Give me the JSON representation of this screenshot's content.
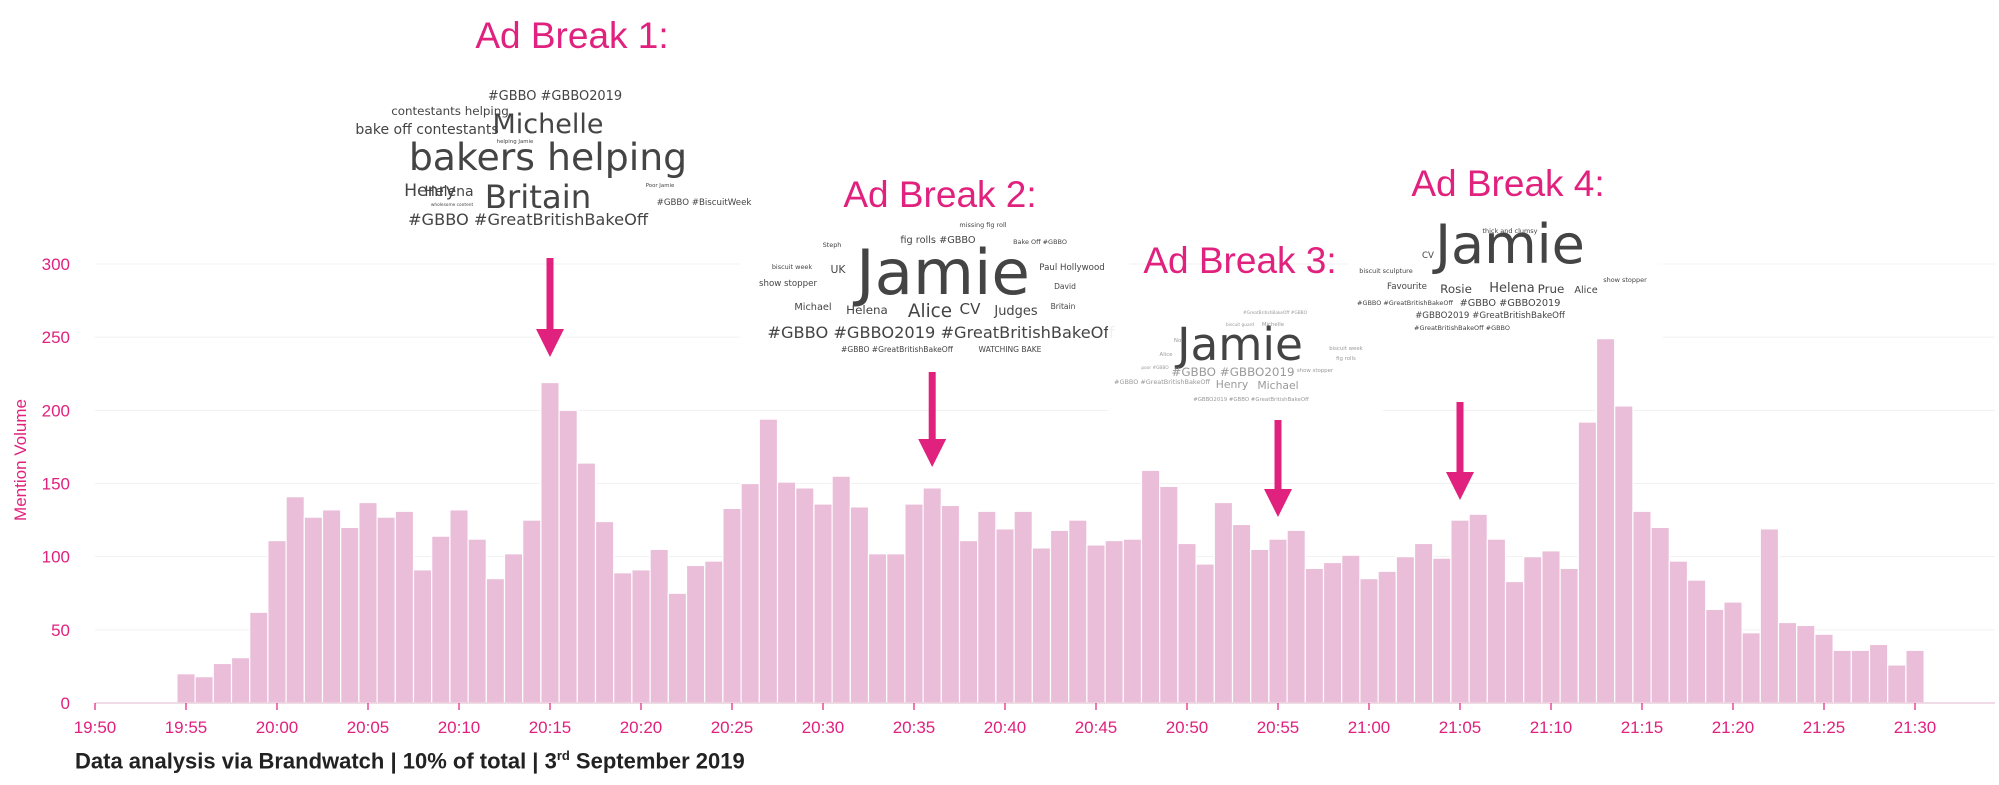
{
  "chart_data": {
    "type": "bar",
    "ylabel": "Mention Volume",
    "ylim": [
      0,
      300
    ],
    "yticks": [
      0,
      50,
      100,
      150,
      200,
      250,
      300
    ],
    "x_tick_labels": [
      "19:50",
      "19:55",
      "20:00",
      "20:05",
      "20:10",
      "20:15",
      "20:20",
      "20:25",
      "20:30",
      "20:35",
      "20:40",
      "20:45",
      "20:50",
      "20:55",
      "21:00",
      "21:05",
      "21:10",
      "21:15",
      "21:20",
      "21:25",
      "21:30"
    ],
    "start_minute": "19:55",
    "values": [
      20,
      18,
      27,
      31,
      62,
      111,
      141,
      127,
      132,
      120,
      137,
      127,
      131,
      91,
      114,
      132,
      112,
      85,
      102,
      125,
      219,
      200,
      164,
      124,
      89,
      91,
      105,
      75,
      94,
      97,
      133,
      150,
      194,
      151,
      147,
      136,
      155,
      134,
      102,
      102,
      136,
      147,
      135,
      111,
      131,
      119,
      131,
      106,
      118,
      125,
      108,
      111,
      112,
      159,
      148,
      109,
      95,
      137,
      122,
      105,
      112,
      118,
      92,
      96,
      101,
      85,
      90,
      100,
      109,
      99,
      125,
      129,
      112,
      83,
      100,
      104,
      92,
      192,
      249,
      203,
      131,
      120,
      97,
      84,
      64,
      69,
      48,
      119,
      55,
      53,
      47,
      36,
      36,
      40,
      26,
      36
    ]
  },
  "ad_breaks": [
    {
      "title": "Ad Break 1:",
      "at": "20:15",
      "words": [
        {
          "text": "#GBBO #GBBO2019",
          "size": 12
        },
        {
          "text": "contestants helping",
          "size": 11
        },
        {
          "text": "Michelle",
          "size": 25
        },
        {
          "text": "bake off contestants",
          "size": 13
        },
        {
          "text": "helping Jamie",
          "size": 5
        },
        {
          "text": "bakers helping",
          "size": 35
        },
        {
          "text": "Helena",
          "size": 13
        },
        {
          "text": "Poor Jamie",
          "size": 5
        },
        {
          "text": "Britain",
          "size": 30
        },
        {
          "text": "Henry",
          "size": 16
        },
        {
          "text": "#GBBO #BiscuitWeek",
          "size": 8
        },
        {
          "text": "wholesome content",
          "size": 4
        },
        {
          "text": "#GBBO #GreatBritishBakeOff",
          "size": 15
        }
      ]
    },
    {
      "title": "Ad Break 2:",
      "at": "20:36",
      "words": [
        {
          "text": "missing fig roll",
          "size": 6
        },
        {
          "text": "fig rolls #GBBO",
          "size": 9
        },
        {
          "text": "Steph",
          "size": 6
        },
        {
          "text": "Bake Off #GBBO",
          "size": 6
        },
        {
          "text": "biscuit week",
          "size": 6
        },
        {
          "text": "UK",
          "size": 10
        },
        {
          "text": "Jamie",
          "size": 58
        },
        {
          "text": "Paul Hollywood",
          "size": 8
        },
        {
          "text": "show stopper",
          "size": 8
        },
        {
          "text": "David",
          "size": 7
        },
        {
          "text": "Michael",
          "size": 9
        },
        {
          "text": "Helena",
          "size": 11
        },
        {
          "text": "Alice",
          "size": 17
        },
        {
          "text": "CV",
          "size": 14
        },
        {
          "text": "Judges",
          "size": 12
        },
        {
          "text": "Britain",
          "size": 7
        },
        {
          "text": "#GBBO #GBBO2019 #GreatBritishBakeOff",
          "size": 15
        },
        {
          "text": "#GBBO #GreatBritishBakeOff",
          "size": 7
        },
        {
          "text": "WATCHING BAKE",
          "size": 7
        }
      ]
    },
    {
      "title": "Ad Break 3:",
      "at": "20:55",
      "words": [
        {
          "text": "#GreatBritishBakeOff #GBBO",
          "size": 4
        },
        {
          "text": "Michelle",
          "size": 5
        },
        {
          "text": "biscuit guard",
          "size": 4
        },
        {
          "text": "Noel",
          "size": 5
        },
        {
          "text": "Jamie",
          "size": 42
        },
        {
          "text": "biscuit week",
          "size": 5
        },
        {
          "text": "Alice",
          "size": 5
        },
        {
          "text": "fig rolls",
          "size": 5
        },
        {
          "text": "poor #GBBO",
          "size": 4
        },
        {
          "text": "#GBBO #GBBO2019",
          "size": 11
        },
        {
          "text": "show stopper",
          "size": 5
        },
        {
          "text": "#GBBO #GreatBritishBakeOff",
          "size": 6
        },
        {
          "text": "Henry",
          "size": 10
        },
        {
          "text": "Michael",
          "size": 10
        },
        {
          "text": "#GBBO2019 #GBBO #GreatBritishBakeOff",
          "size": 5
        }
      ]
    },
    {
      "title": "Ad Break 4:",
      "at": "21:05",
      "words": [
        {
          "text": "thick and clumsy",
          "size": 6
        },
        {
          "text": "CV",
          "size": 8
        },
        {
          "text": "Jamie",
          "size": 50
        },
        {
          "text": "biscuit sculpture",
          "size": 6
        },
        {
          "text": "Favourite",
          "size": 8
        },
        {
          "text": "show stopper",
          "size": 6
        },
        {
          "text": "Rosie",
          "size": 11
        },
        {
          "text": "Helena",
          "size": 12
        },
        {
          "text": "Prue",
          "size": 11
        },
        {
          "text": "Alice",
          "size": 9
        },
        {
          "text": "#GBBO #GreatBritishBakeOff",
          "size": 6
        },
        {
          "text": "#GBBO #GBBO2019",
          "size": 9
        },
        {
          "text": "#GBBO2019 #GreatBritishBakeOff",
          "size": 8
        },
        {
          "text": "#GreatBritishBakeOff #GBBO",
          "size": 6
        }
      ]
    }
  ],
  "footer": {
    "prefix": "Data analysis via Brandwatch | 10% of total | 3",
    "sup": "rd",
    "suffix": " September 2019"
  },
  "colors": {
    "bar": "#eabdd8",
    "accent": "#e0217e",
    "word": "#444444"
  }
}
